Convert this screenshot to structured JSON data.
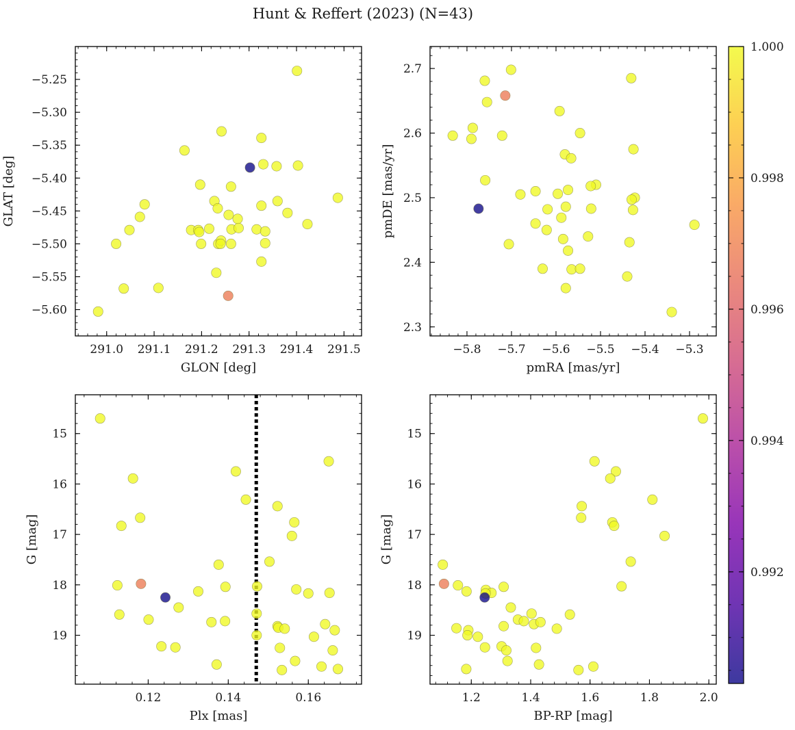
{
  "figure": {
    "suptitle": "Hunt & Reffert (2023) (N=43)"
  },
  "colorbar": {
    "colormap": "plasma",
    "range": [
      0.9903,
      1.0
    ],
    "tick_values": [
      0.992,
      0.994,
      0.996,
      0.998,
      1.0
    ],
    "tick_labels": [
      "0.992",
      "0.994",
      "0.996",
      "0.998",
      "1.000"
    ]
  },
  "chart_data": [
    {
      "type": "scatter",
      "panel": "top-left",
      "xlabel": "GLON [deg]",
      "ylabel": "GLAT [deg]",
      "xlim": [
        290.934,
        291.537
      ],
      "ylim": [
        -5.64,
        -5.2
      ],
      "y_inverted": false,
      "xticks": [
        291.0,
        291.1,
        291.2,
        291.3,
        291.4,
        291.5
      ],
      "xtick_labels": [
        "291.0",
        "291.1",
        "291.2",
        "291.3",
        "291.4",
        "291.5"
      ],
      "yticks": [
        -5.6,
        -5.55,
        -5.5,
        -5.45,
        -5.4,
        -5.35,
        -5.3,
        -5.25
      ],
      "ytick_labels": [
        "−5.60",
        "−5.55",
        "−5.50",
        "−5.45",
        "−5.40",
        "−5.35",
        "−5.30",
        "−5.25"
      ],
      "points": [
        {
          "x": 291.401,
          "y": -5.237,
          "c": 1.0
        },
        {
          "x": 291.242,
          "y": -5.329,
          "c": 1.0
        },
        {
          "x": 291.326,
          "y": -5.339,
          "c": 1.0
        },
        {
          "x": 291.164,
          "y": -5.358,
          "c": 1.0
        },
        {
          "x": 291.33,
          "y": -5.379,
          "c": 1.0
        },
        {
          "x": 291.358,
          "y": -5.382,
          "c": 1.0
        },
        {
          "x": 291.403,
          "y": -5.381,
          "c": 1.0
        },
        {
          "x": 291.302,
          "y": -5.384,
          "c": 0.9903
        },
        {
          "x": 291.197,
          "y": -5.41,
          "c": 1.0
        },
        {
          "x": 291.262,
          "y": -5.413,
          "c": 1.0
        },
        {
          "x": 291.08,
          "y": -5.44,
          "c": 1.0
        },
        {
          "x": 291.227,
          "y": -5.435,
          "c": 1.0
        },
        {
          "x": 291.36,
          "y": -5.435,
          "c": 1.0
        },
        {
          "x": 291.326,
          "y": -5.442,
          "c": 1.0
        },
        {
          "x": 291.234,
          "y": -5.446,
          "c": 1.0
        },
        {
          "x": 291.381,
          "y": -5.453,
          "c": 1.0
        },
        {
          "x": 291.257,
          "y": -5.456,
          "c": 1.0
        },
        {
          "x": 291.07,
          "y": -5.459,
          "c": 1.0
        },
        {
          "x": 291.276,
          "y": -5.462,
          "c": 1.0
        },
        {
          "x": 291.423,
          "y": -5.47,
          "c": 1.0
        },
        {
          "x": 291.487,
          "y": -5.43,
          "c": 1.0
        },
        {
          "x": 291.048,
          "y": -5.479,
          "c": 1.0
        },
        {
          "x": 291.178,
          "y": -5.479,
          "c": 1.0
        },
        {
          "x": 291.193,
          "y": -5.479,
          "c": 1.0
        },
        {
          "x": 291.216,
          "y": -5.477,
          "c": 1.0
        },
        {
          "x": 291.263,
          "y": -5.478,
          "c": 1.0
        },
        {
          "x": 291.278,
          "y": -5.476,
          "c": 1.0
        },
        {
          "x": 291.316,
          "y": -5.478,
          "c": 1.0
        },
        {
          "x": 291.334,
          "y": -5.481,
          "c": 1.0
        },
        {
          "x": 291.195,
          "y": -5.482,
          "c": 1.0
        },
        {
          "x": 291.02,
          "y": -5.5,
          "c": 1.0
        },
        {
          "x": 291.199,
          "y": -5.5,
          "c": 1.0
        },
        {
          "x": 291.235,
          "y": -5.5,
          "c": 1.0
        },
        {
          "x": 291.241,
          "y": -5.495,
          "c": 1.0
        },
        {
          "x": 291.262,
          "y": -5.5,
          "c": 1.0
        },
        {
          "x": 291.334,
          "y": -5.499,
          "c": 1.0
        },
        {
          "x": 291.326,
          "y": -5.527,
          "c": 1.0
        },
        {
          "x": 291.231,
          "y": -5.544,
          "c": 1.0
        },
        {
          "x": 291.036,
          "y": -5.568,
          "c": 1.0
        },
        {
          "x": 291.109,
          "y": -5.567,
          "c": 1.0
        },
        {
          "x": 291.256,
          "y": -5.579,
          "c": 0.9968
        },
        {
          "x": 290.982,
          "y": -5.603,
          "c": 1.0
        },
        {
          "x": 291.24,
          "y": -5.5,
          "c": 1.0
        }
      ]
    },
    {
      "type": "scatter",
      "panel": "top-right",
      "xlabel": "pmRA [mas/yr]",
      "ylabel": "pmDE [mas/yr]",
      "xlim": [
        -5.883,
        -5.24
      ],
      "ylim": [
        2.286,
        2.734
      ],
      "y_inverted": false,
      "xticks": [
        -5.8,
        -5.7,
        -5.6,
        -5.5,
        -5.4,
        -5.3
      ],
      "xtick_labels": [
        "−5.8",
        "−5.7",
        "−5.6",
        "−5.5",
        "−5.4",
        "−5.3"
      ],
      "yticks": [
        2.3,
        2.4,
        2.5,
        2.6,
        2.7
      ],
      "ytick_labels": [
        "2.3",
        "2.4",
        "2.5",
        "2.6",
        "2.7"
      ],
      "points": [
        {
          "x": -5.701,
          "y": 2.698,
          "c": 1.0
        },
        {
          "x": -5.431,
          "y": 2.685,
          "c": 1.0
        },
        {
          "x": -5.76,
          "y": 2.681,
          "c": 1.0
        },
        {
          "x": -5.714,
          "y": 2.658,
          "c": 0.9968
        },
        {
          "x": -5.755,
          "y": 2.648,
          "c": 1.0
        },
        {
          "x": -5.592,
          "y": 2.634,
          "c": 1.0
        },
        {
          "x": -5.787,
          "y": 2.608,
          "c": 1.0
        },
        {
          "x": -5.546,
          "y": 2.6,
          "c": 1.0
        },
        {
          "x": -5.832,
          "y": 2.596,
          "c": 1.0
        },
        {
          "x": -5.721,
          "y": 2.596,
          "c": 1.0
        },
        {
          "x": -5.79,
          "y": 2.591,
          "c": 1.0
        },
        {
          "x": -5.426,
          "y": 2.575,
          "c": 1.0
        },
        {
          "x": -5.58,
          "y": 2.567,
          "c": 1.0
        },
        {
          "x": -5.566,
          "y": 2.561,
          "c": 1.0
        },
        {
          "x": -5.759,
          "y": 2.527,
          "c": 1.0
        },
        {
          "x": -5.51,
          "y": 2.52,
          "c": 1.0
        },
        {
          "x": -5.522,
          "y": 2.518,
          "c": 1.0
        },
        {
          "x": -5.573,
          "y": 2.512,
          "c": 1.0
        },
        {
          "x": -5.646,
          "y": 2.51,
          "c": 1.0
        },
        {
          "x": -5.68,
          "y": 2.505,
          "c": 1.0
        },
        {
          "x": -5.596,
          "y": 2.506,
          "c": 1.0
        },
        {
          "x": -5.423,
          "y": 2.5,
          "c": 1.0
        },
        {
          "x": -5.43,
          "y": 2.497,
          "c": 1.0
        },
        {
          "x": -5.578,
          "y": 2.486,
          "c": 1.0
        },
        {
          "x": -5.774,
          "y": 2.483,
          "c": 0.9903
        },
        {
          "x": -5.619,
          "y": 2.482,
          "c": 1.0
        },
        {
          "x": -5.521,
          "y": 2.483,
          "c": 1.0
        },
        {
          "x": -5.427,
          "y": 2.481,
          "c": 1.0
        },
        {
          "x": -5.588,
          "y": 2.469,
          "c": 1.0
        },
        {
          "x": -5.646,
          "y": 2.46,
          "c": 1.0
        },
        {
          "x": -5.289,
          "y": 2.458,
          "c": 1.0
        },
        {
          "x": -5.621,
          "y": 2.45,
          "c": 1.0
        },
        {
          "x": -5.528,
          "y": 2.44,
          "c": 1.0
        },
        {
          "x": -5.584,
          "y": 2.436,
          "c": 1.0
        },
        {
          "x": -5.435,
          "y": 2.431,
          "c": 1.0
        },
        {
          "x": -5.706,
          "y": 2.428,
          "c": 1.0
        },
        {
          "x": -5.573,
          "y": 2.418,
          "c": 1.0
        },
        {
          "x": -5.63,
          "y": 2.39,
          "c": 1.0
        },
        {
          "x": -5.565,
          "y": 2.389,
          "c": 1.0
        },
        {
          "x": -5.546,
          "y": 2.39,
          "c": 1.0
        },
        {
          "x": -5.44,
          "y": 2.378,
          "c": 1.0
        },
        {
          "x": -5.578,
          "y": 2.36,
          "c": 1.0
        },
        {
          "x": -5.34,
          "y": 2.323,
          "c": 1.0
        }
      ]
    },
    {
      "type": "scatter",
      "panel": "bottom-left",
      "xlabel": "Plx [mas]",
      "ylabel": "G [mag]",
      "xlim": [
        0.1018,
        0.1733
      ],
      "ylim": [
        19.97,
        14.23
      ],
      "y_inverted": true,
      "vline": {
        "x": 0.147,
        "style": "dotted",
        "color": "#000000"
      },
      "xticks": [
        0.12,
        0.14,
        0.16
      ],
      "xtick_labels": [
        "0.12",
        "0.14",
        "0.16"
      ],
      "yticks": [
        15,
        16,
        17,
        18,
        19
      ],
      "ytick_labels": [
        "15",
        "16",
        "17",
        "18",
        "19"
      ],
      "points": [
        {
          "x": 0.108,
          "y": 14.7,
          "c": 1.0
        },
        {
          "x": 0.1651,
          "y": 15.55,
          "c": 1.0
        },
        {
          "x": 0.1419,
          "y": 15.75,
          "c": 1.0
        },
        {
          "x": 0.1162,
          "y": 15.89,
          "c": 1.0
        },
        {
          "x": 0.1444,
          "y": 16.31,
          "c": 1.0
        },
        {
          "x": 0.1523,
          "y": 16.44,
          "c": 1.0
        },
        {
          "x": 0.118,
          "y": 16.67,
          "c": 1.0
        },
        {
          "x": 0.1565,
          "y": 16.76,
          "c": 1.0
        },
        {
          "x": 0.1133,
          "y": 16.83,
          "c": 1.0
        },
        {
          "x": 0.1559,
          "y": 17.03,
          "c": 1.0
        },
        {
          "x": 0.1503,
          "y": 17.54,
          "c": 1.0
        },
        {
          "x": 0.1376,
          "y": 17.6,
          "c": 1.0
        },
        {
          "x": 0.1123,
          "y": 18.01,
          "c": 1.0
        },
        {
          "x": 0.1182,
          "y": 17.98,
          "c": 0.9968
        },
        {
          "x": 0.1393,
          "y": 18.04,
          "c": 1.0
        },
        {
          "x": 0.1472,
          "y": 18.03,
          "c": 1.0
        },
        {
          "x": 0.157,
          "y": 18.09,
          "c": 1.0
        },
        {
          "x": 0.1325,
          "y": 18.13,
          "c": 1.0
        },
        {
          "x": 0.16,
          "y": 18.17,
          "c": 1.0
        },
        {
          "x": 0.1653,
          "y": 18.16,
          "c": 1.0
        },
        {
          "x": 0.1243,
          "y": 18.25,
          "c": 0.9903
        },
        {
          "x": 0.1276,
          "y": 18.45,
          "c": 1.0
        },
        {
          "x": 0.1471,
          "y": 18.57,
          "c": 1.0
        },
        {
          "x": 0.1128,
          "y": 18.59,
          "c": 1.0
        },
        {
          "x": 0.1201,
          "y": 18.69,
          "c": 1.0
        },
        {
          "x": 0.1358,
          "y": 18.74,
          "c": 1.0
        },
        {
          "x": 0.1392,
          "y": 18.72,
          "c": 1.0
        },
        {
          "x": 0.1642,
          "y": 18.78,
          "c": 1.0
        },
        {
          "x": 0.1523,
          "y": 18.82,
          "c": 1.0
        },
        {
          "x": 0.1525,
          "y": 18.85,
          "c": 1.0
        },
        {
          "x": 0.1541,
          "y": 18.87,
          "c": 1.0
        },
        {
          "x": 0.1666,
          "y": 18.9,
          "c": 1.0
        },
        {
          "x": 0.1471,
          "y": 19.0,
          "c": 1.0
        },
        {
          "x": 0.1614,
          "y": 19.03,
          "c": 1.0
        },
        {
          "x": 0.1233,
          "y": 19.22,
          "c": 1.0
        },
        {
          "x": 0.1268,
          "y": 19.24,
          "c": 1.0
        },
        {
          "x": 0.1529,
          "y": 19.25,
          "c": 1.0
        },
        {
          "x": 0.1661,
          "y": 19.3,
          "c": 1.0
        },
        {
          "x": 0.1567,
          "y": 19.51,
          "c": 1.0
        },
        {
          "x": 0.1371,
          "y": 19.58,
          "c": 1.0
        },
        {
          "x": 0.1633,
          "y": 19.62,
          "c": 1.0
        },
        {
          "x": 0.1534,
          "y": 19.69,
          "c": 1.0
        },
        {
          "x": 0.1674,
          "y": 19.67,
          "c": 1.0
        }
      ]
    },
    {
      "type": "scatter",
      "panel": "bottom-right",
      "xlabel": "BP-RP [mag]",
      "ylabel": "G [mag]",
      "xlim": [
        1.061,
        2.025
      ],
      "ylim": [
        19.97,
        14.23
      ],
      "y_inverted": true,
      "xticks": [
        1.2,
        1.4,
        1.6,
        1.8,
        2.0
      ],
      "xtick_labels": [
        "1.2",
        "1.4",
        "1.6",
        "1.8",
        "2.0"
      ],
      "yticks": [
        15,
        16,
        17,
        18,
        19
      ],
      "ytick_labels": [
        "15",
        "16",
        "17",
        "18",
        "19"
      ],
      "points": [
        {
          "x": 1.98,
          "y": 14.7,
          "c": 1.0
        },
        {
          "x": 1.615,
          "y": 15.55,
          "c": 1.0
        },
        {
          "x": 1.687,
          "y": 15.75,
          "c": 1.0
        },
        {
          "x": 1.668,
          "y": 15.89,
          "c": 1.0
        },
        {
          "x": 1.81,
          "y": 16.31,
          "c": 1.0
        },
        {
          "x": 1.572,
          "y": 16.44,
          "c": 1.0
        },
        {
          "x": 1.57,
          "y": 16.67,
          "c": 1.0
        },
        {
          "x": 1.675,
          "y": 16.76,
          "c": 1.0
        },
        {
          "x": 1.681,
          "y": 16.83,
          "c": 1.0
        },
        {
          "x": 1.851,
          "y": 17.03,
          "c": 1.0
        },
        {
          "x": 1.737,
          "y": 17.54,
          "c": 1.0
        },
        {
          "x": 1.104,
          "y": 17.6,
          "c": 1.0
        },
        {
          "x": 1.108,
          "y": 17.98,
          "c": 0.9968
        },
        {
          "x": 1.155,
          "y": 18.01,
          "c": 1.0
        },
        {
          "x": 1.309,
          "y": 18.04,
          "c": 1.0
        },
        {
          "x": 1.706,
          "y": 18.03,
          "c": 1.0
        },
        {
          "x": 1.249,
          "y": 18.1,
          "c": 1.0
        },
        {
          "x": 1.184,
          "y": 18.13,
          "c": 1.0
        },
        {
          "x": 1.268,
          "y": 18.16,
          "c": 1.0
        },
        {
          "x": 1.248,
          "y": 18.17,
          "c": 1.0
        },
        {
          "x": 1.245,
          "y": 18.25,
          "c": 0.9903
        },
        {
          "x": 1.333,
          "y": 18.45,
          "c": 1.0
        },
        {
          "x": 1.403,
          "y": 18.57,
          "c": 1.0
        },
        {
          "x": 1.532,
          "y": 18.59,
          "c": 1.0
        },
        {
          "x": 1.357,
          "y": 18.69,
          "c": 1.0
        },
        {
          "x": 1.377,
          "y": 18.72,
          "c": 1.0
        },
        {
          "x": 1.411,
          "y": 18.78,
          "c": 1.0
        },
        {
          "x": 1.433,
          "y": 18.74,
          "c": 1.0
        },
        {
          "x": 1.309,
          "y": 18.82,
          "c": 1.0
        },
        {
          "x": 1.15,
          "y": 18.86,
          "c": 1.0
        },
        {
          "x": 1.488,
          "y": 18.87,
          "c": 1.0
        },
        {
          "x": 1.19,
          "y": 18.9,
          "c": 1.0
        },
        {
          "x": 1.187,
          "y": 19.0,
          "c": 1.0
        },
        {
          "x": 1.222,
          "y": 19.03,
          "c": 1.0
        },
        {
          "x": 1.302,
          "y": 19.22,
          "c": 1.0
        },
        {
          "x": 1.246,
          "y": 19.24,
          "c": 1.0
        },
        {
          "x": 1.418,
          "y": 19.25,
          "c": 1.0
        },
        {
          "x": 1.318,
          "y": 19.3,
          "c": 1.0
        },
        {
          "x": 1.322,
          "y": 19.51,
          "c": 1.0
        },
        {
          "x": 1.428,
          "y": 19.58,
          "c": 1.0
        },
        {
          "x": 1.611,
          "y": 19.62,
          "c": 1.0
        },
        {
          "x": 1.183,
          "y": 19.67,
          "c": 1.0
        },
        {
          "x": 1.561,
          "y": 19.69,
          "c": 1.0
        }
      ]
    }
  ]
}
